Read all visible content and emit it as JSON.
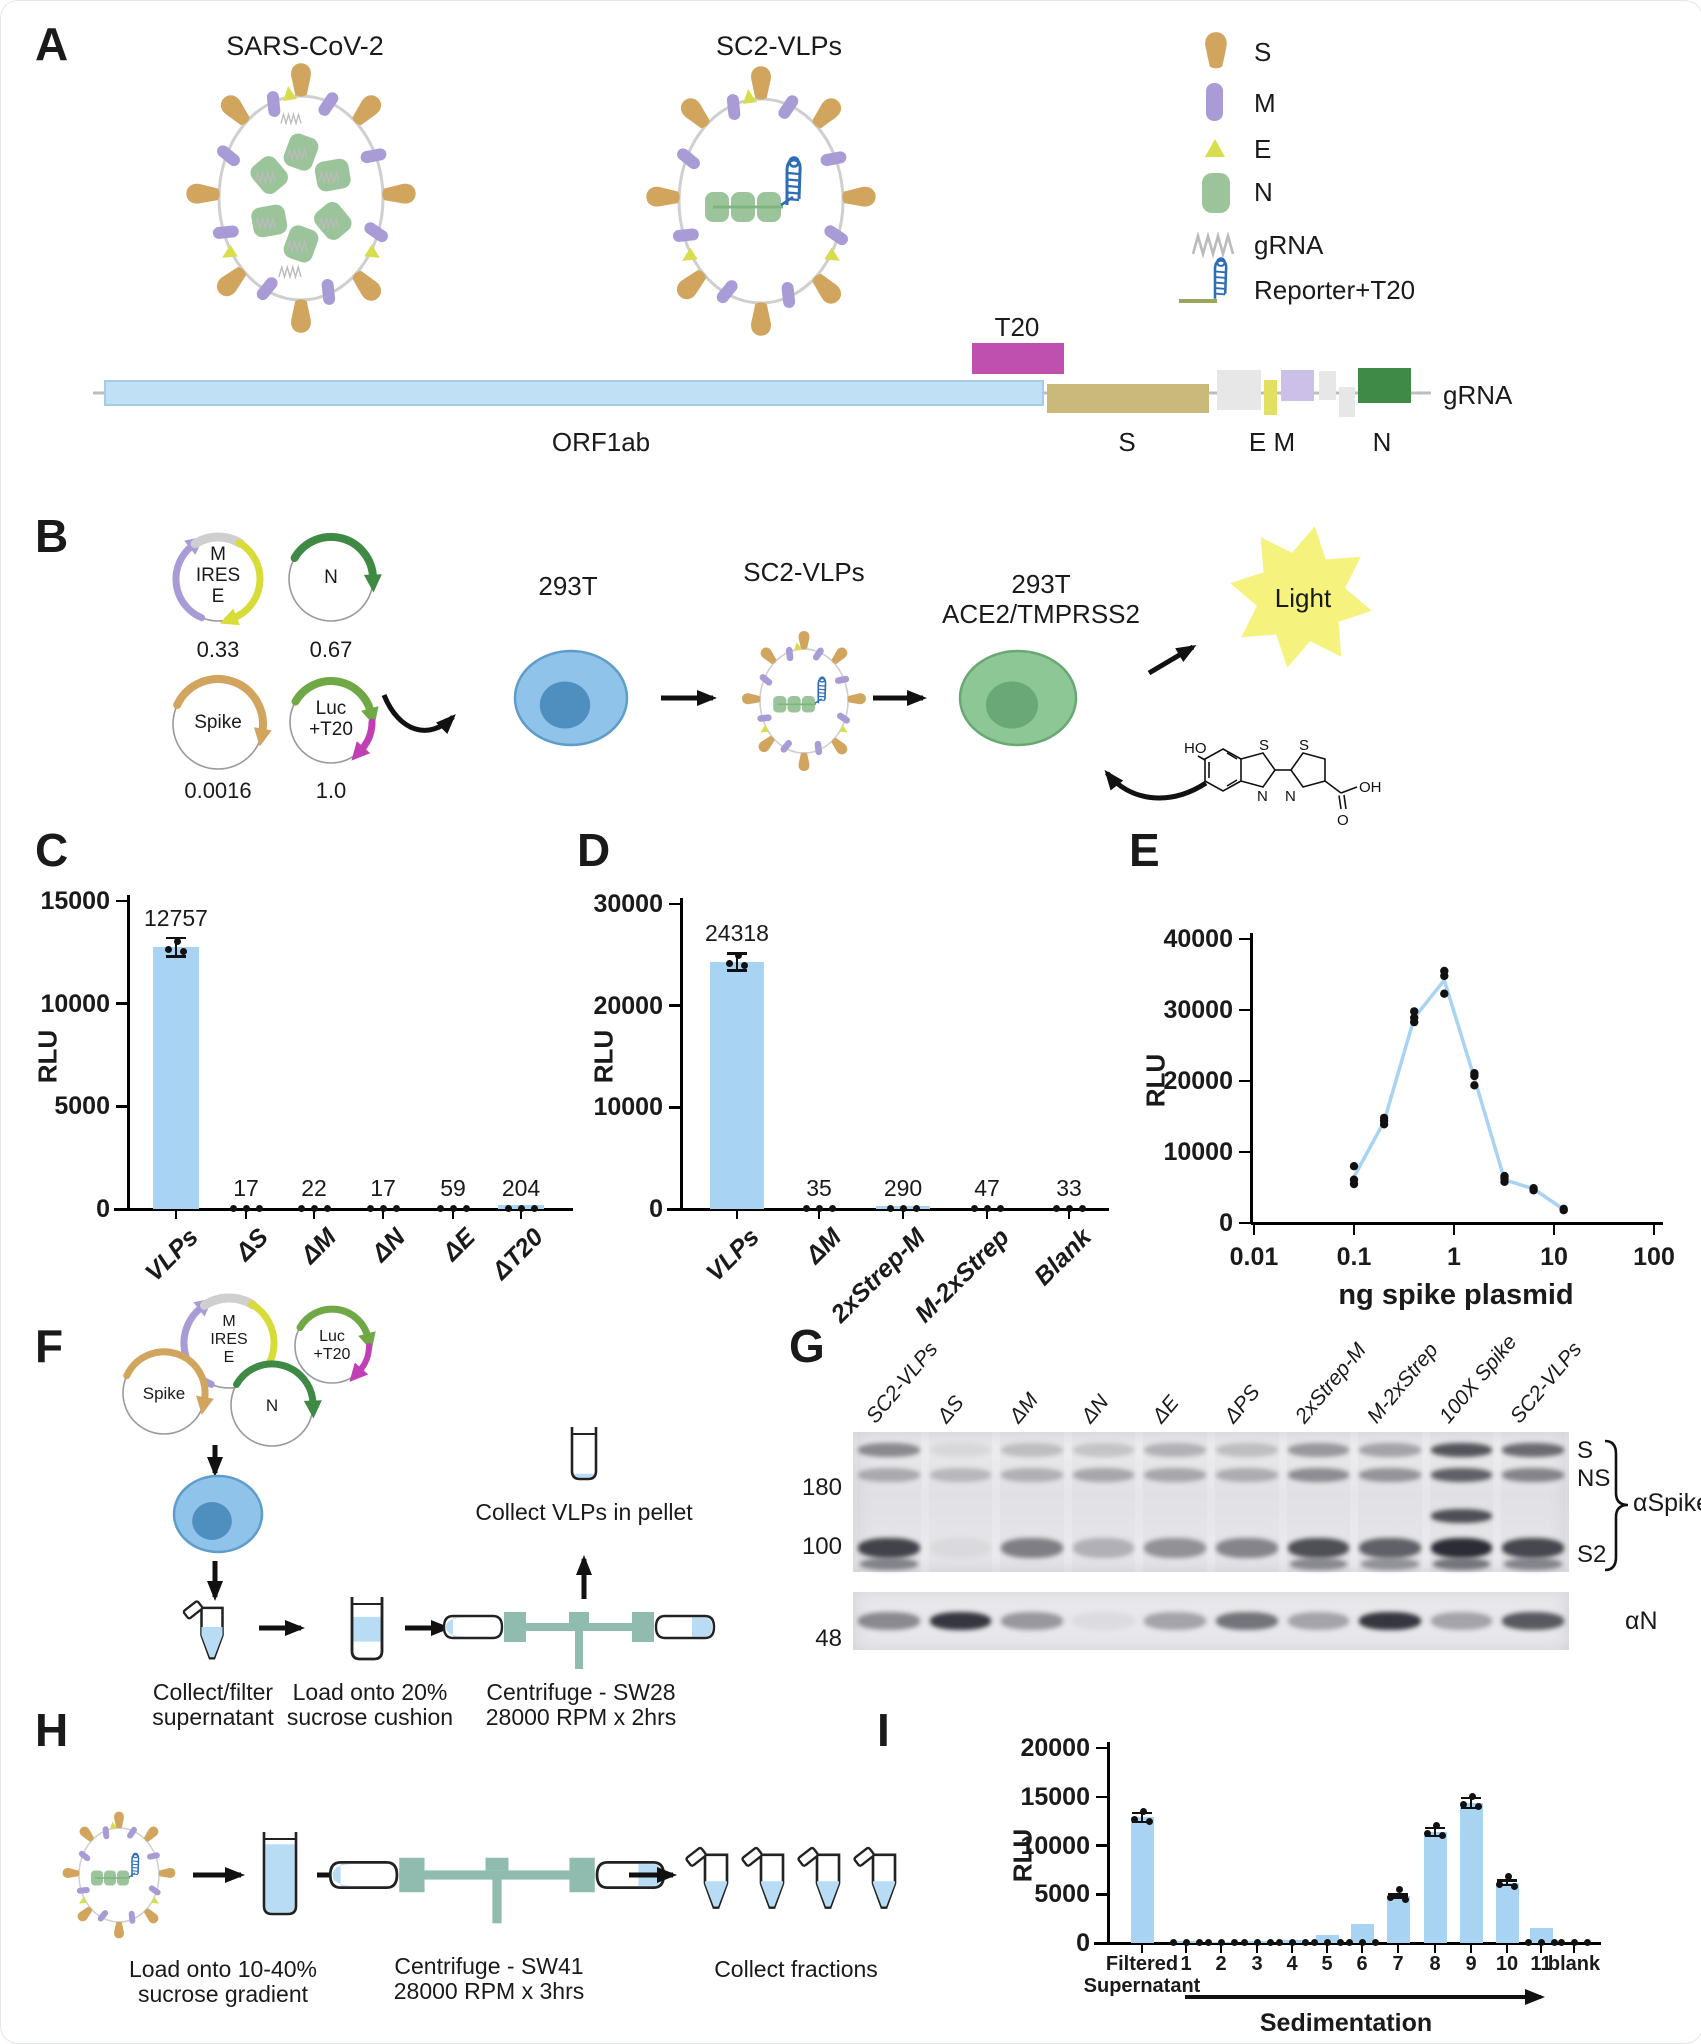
{
  "panels": {
    "A": {
      "label": "A",
      "virion_titles": [
        "SARS-CoV-2",
        "SC2-VLPs"
      ],
      "legend": [
        {
          "icon": "spike-icon",
          "label": "S"
        },
        {
          "icon": "membrane-icon",
          "label": "M"
        },
        {
          "icon": "envelope-icon",
          "label": "E"
        },
        {
          "icon": "nucleocapsid-icon",
          "label": "N"
        },
        {
          "icon": "grna-icon",
          "label": "gRNA"
        },
        {
          "icon": "reporter-icon",
          "label": "Reporter+T20"
        }
      ],
      "genome": {
        "orf1ab": "ORF1ab",
        "t20": "T20",
        "s": "S",
        "em": "E M",
        "n": "N",
        "grna": "gRNA"
      }
    },
    "B": {
      "label": "B",
      "plasmids": [
        {
          "lines": [
            "M",
            "IRES",
            "E"
          ],
          "amount": "0.33"
        },
        {
          "lines": [
            "N"
          ],
          "amount": "0.67"
        },
        {
          "lines": [
            "Spike"
          ],
          "amount": "0.0016"
        },
        {
          "lines": [
            "Luc",
            "+T20"
          ],
          "amount": "1.0"
        }
      ],
      "producer_cell": "293T",
      "vlp_label": "SC2-VLPs",
      "target_cell": [
        "293T",
        "ACE2/TMPRSS2"
      ],
      "light": "Light",
      "substrate_atoms": {
        "ho": "HO",
        "s1": "S",
        "n1": "N",
        "s2": "S",
        "n2": "N",
        "oh": "OH",
        "o": "O"
      }
    },
    "C": {
      "label": "C"
    },
    "D": {
      "label": "D"
    },
    "E": {
      "label": "E"
    },
    "F": {
      "label": "F",
      "steps": [
        [
          "Collect/filter",
          "supernatant"
        ],
        [
          "Load onto 20%",
          "sucrose cushion"
        ],
        [
          "Centrifuge - SW28",
          "28000 RPM x 2hrs"
        ]
      ],
      "collect": "Collect VLPs in pellet"
    },
    "G": {
      "label": "G",
      "lanes": [
        "SC2-VLPs",
        "ΔS",
        "ΔM",
        "ΔN",
        "ΔE",
        "ΔPS",
        "2xStrep-M",
        "M-2xStrep",
        "100X Spike",
        "SC2-VLPs"
      ],
      "markers": [
        "180",
        "100",
        "48"
      ],
      "band_labels": [
        "S",
        "NS",
        "S2"
      ],
      "antibody_top": "αSpike",
      "antibody_bottom": "αN",
      "top_band_rows": [
        {
          "name": "S",
          "y": 0.13,
          "lanes": [
            0.5,
            0.08,
            0.22,
            0.18,
            0.28,
            0.22,
            0.42,
            0.36,
            0.78,
            0.66
          ]
        },
        {
          "name": "NS",
          "y": 0.31,
          "lanes": [
            0.32,
            0.24,
            0.28,
            0.34,
            0.34,
            0.3,
            0.48,
            0.44,
            0.72,
            0.52
          ]
        },
        {
          "name": "extra",
          "y": 0.6,
          "lanes": [
            0,
            0,
            0,
            0,
            0,
            0,
            0,
            0,
            0.82,
            0
          ]
        },
        {
          "name": "S2",
          "y": 0.83,
          "lanes": [
            0.88,
            0.05,
            0.55,
            0.28,
            0.46,
            0.52,
            0.82,
            0.72,
            1.0,
            0.86
          ]
        }
      ],
      "bottom_band_lanes": [
        0.5,
        0.95,
        0.42,
        0.05,
        0.36,
        0.62,
        0.36,
        0.95,
        0.36,
        0.76
      ]
    },
    "H": {
      "label": "H",
      "steps": [
        [
          "Load onto 10-40%",
          "sucrose gradient"
        ],
        [
          "Centrifuge - SW41",
          "28000 RPM x 3hrs"
        ],
        [
          "Collect fractions",
          ""
        ]
      ]
    },
    "I": {
      "label": "I",
      "arrow_label": "Sedimentation"
    }
  },
  "chart_data": [
    {
      "id": "C",
      "type": "bar",
      "title": "",
      "ylabel": "RLU",
      "ylim": [
        0,
        15000
      ],
      "yticks": [
        0,
        5000,
        10000,
        15000
      ],
      "categories": [
        "VLPs",
        "ΔS",
        "ΔM",
        "ΔN",
        "ΔE",
        "ΔT20"
      ],
      "values": [
        12757,
        17,
        22,
        17,
        59,
        204
      ],
      "value_labels": [
        "12757",
        "17",
        "22",
        "17",
        "59",
        "204"
      ],
      "bar_color": "#A9D3F2",
      "legend_position": "none",
      "grid": false
    },
    {
      "id": "D",
      "type": "bar",
      "title": "",
      "ylabel": "RLU",
      "ylim": [
        0,
        30000
      ],
      "yticks": [
        0,
        10000,
        20000,
        30000
      ],
      "categories": [
        "VLPs",
        "ΔM",
        "2xStrep-M",
        "M-2xStrep",
        "Blank"
      ],
      "values": [
        24318,
        35,
        290,
        47,
        33
      ],
      "value_labels": [
        "24318",
        "35",
        "290",
        "47",
        "33"
      ],
      "bar_color": "#A9D3F2",
      "legend_position": "none",
      "grid": false
    },
    {
      "id": "E",
      "type": "scatter",
      "xlabel": "ng spike plasmid",
      "ylabel": "RLU",
      "xscale": "log",
      "xlim": [
        0.01,
        100
      ],
      "xticks": [
        0.01,
        0.1,
        1,
        10,
        100
      ],
      "xtick_labels": [
        "0.01",
        "0.1",
        "1",
        "10",
        "100"
      ],
      "ylim": [
        0,
        40000
      ],
      "yticks": [
        0,
        10000,
        20000,
        30000,
        40000
      ],
      "line_x": [
        0.1,
        0.2,
        0.4,
        0.8,
        1.6,
        3.2,
        6.25,
        12.5
      ],
      "line_y": [
        6500,
        14300,
        28900,
        34200,
        20400,
        6100,
        4800,
        1900
      ],
      "points": [
        [
          0.1,
          5500
        ],
        [
          0.1,
          6100
        ],
        [
          0.1,
          8000
        ],
        [
          0.2,
          13900
        ],
        [
          0.2,
          14400
        ],
        [
          0.2,
          14800
        ],
        [
          0.4,
          28300
        ],
        [
          0.4,
          28900
        ],
        [
          0.4,
          29800
        ],
        [
          0.8,
          32300
        ],
        [
          0.8,
          34800
        ],
        [
          0.8,
          35500
        ],
        [
          1.6,
          19400
        ],
        [
          1.6,
          20700
        ],
        [
          1.6,
          21100
        ],
        [
          3.2,
          5800
        ],
        [
          3.2,
          6300
        ],
        [
          3.2,
          6600
        ],
        [
          6.25,
          4600
        ],
        [
          6.25,
          4900
        ],
        [
          12.5,
          1800
        ],
        [
          12.5,
          2000
        ]
      ],
      "line_color": "#A9D3F2",
      "point_color": "#111111",
      "grid": false
    },
    {
      "id": "I",
      "type": "bar",
      "ylabel": "RLU",
      "ylim": [
        0,
        20000
      ],
      "yticks": [
        0,
        5000,
        10000,
        15000,
        20000
      ],
      "categories": [
        "Filtered\nSupernatant",
        "1",
        "2",
        "3",
        "4",
        "5",
        "6",
        "7",
        "8",
        "9",
        "10",
        "11",
        "blank"
      ],
      "values": [
        12900,
        250,
        150,
        200,
        350,
        800,
        1900,
        4850,
        11400,
        14400,
        6200,
        1500,
        20
      ],
      "value_labels": [],
      "bar_color": "#A9D3F2",
      "xlabel_arrow": "Sedimentation",
      "grid": false
    }
  ],
  "colors": {
    "bar_blue": "#A9D3F2",
    "spike_tan": "#D2A55F",
    "gene_s_tan": "#CBB87B",
    "membrane_purple": "#A99BD6",
    "gene_m_purple": "#CCC0E8",
    "envelope_yellow": "#D9DD4D",
    "gene_e_yellow": "#E2E060",
    "nucleocapsid_green": "#9CC49A",
    "gene_n_green": "#3F8A46",
    "orf1ab_blue": "#BFE0F5",
    "t20_magenta": "#C050B0",
    "reporter_blue": "#2E6DB4",
    "reporter_olive": "#9AA65B",
    "grna_gray": "#BBBBBB",
    "cell_blue": "#8FC3E9",
    "cell_blue_nucleus": "#4E8FBF",
    "cell_green": "#8CC795",
    "cell_green_nucleus": "#6BA878",
    "light_yellow": "#F6F27E",
    "rotor_teal": "#8FBCAE",
    "liquid_blue": "#B9DCF5"
  }
}
